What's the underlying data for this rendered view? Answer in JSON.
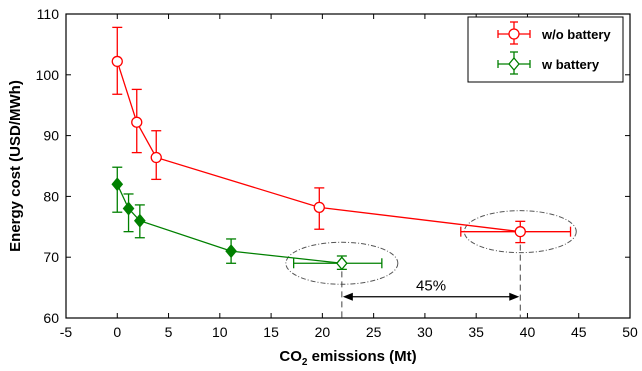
{
  "chart_data": {
    "type": "scatter",
    "xlabel_main": "CO",
    "xlabel_sub": "2",
    "xlabel_rest": " emissions (Mt)",
    "ylabel": "Energy cost (USD/MWh)",
    "xlim": [
      -5,
      50
    ],
    "ylim": [
      60,
      110
    ],
    "x_ticks": [
      "-5",
      "0",
      "5",
      "10",
      "15",
      "20",
      "25",
      "30",
      "35",
      "40",
      "45",
      "50"
    ],
    "y_ticks": [
      "60",
      "70",
      "80",
      "90",
      "100",
      "110"
    ],
    "legend_position": "top-right",
    "series": [
      {
        "name": "w/o battery",
        "color": "#ff0000",
        "marker": "circle",
        "points": [
          {
            "x": 0,
            "y": 102.2,
            "ylo": 96.8,
            "yhi": 107.8
          },
          {
            "x": 1.9,
            "y": 92.2,
            "ylo": 87.2,
            "yhi": 97.6
          },
          {
            "x": 3.8,
            "y": 86.4,
            "ylo": 82.8,
            "yhi": 90.8
          },
          {
            "x": 19.7,
            "y": 78.2,
            "ylo": 74.6,
            "yhi": 81.4
          },
          {
            "x": 39.3,
            "y": 74.2,
            "ylo": 72.4,
            "yhi": 75.9,
            "xlo": 33.5,
            "xhi": 44.2
          }
        ]
      },
      {
        "name": "w battery",
        "color": "#008000",
        "marker": "diamond",
        "points": [
          {
            "x": 0,
            "y": 82.0,
            "ylo": 77.4,
            "yhi": 84.8
          },
          {
            "x": 1.1,
            "y": 78.0,
            "ylo": 74.2,
            "yhi": 80.4
          },
          {
            "x": 2.2,
            "y": 76.0,
            "ylo": 73.2,
            "yhi": 78.6
          },
          {
            "x": 11.1,
            "y": 71.0,
            "ylo": 69.0,
            "yhi": 73.0
          },
          {
            "x": 21.9,
            "y": 69.0,
            "ylo": 68.0,
            "yhi": 70.2,
            "xlo": 17.2,
            "xhi": 25.8
          }
        ]
      }
    ],
    "annotation": {
      "text": "45%",
      "from_x": 21.9,
      "to_x": 39.3,
      "y": 63.5
    }
  }
}
